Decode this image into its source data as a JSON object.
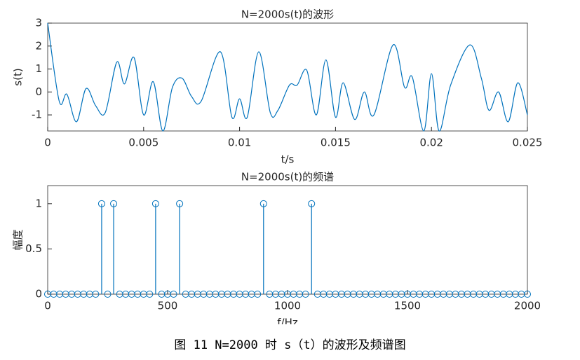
{
  "chart_data": [
    {
      "type": "line",
      "title": "N=2000s(t)的波形",
      "xlabel": "t/s",
      "ylabel": "s(t)",
      "color": "#0072bd",
      "x": [
        0,
        0.0006,
        0.001,
        0.0015,
        0.002,
        0.0025,
        0.003,
        0.0036,
        0.004,
        0.0045,
        0.005,
        0.0055,
        0.006,
        0.0065,
        0.007,
        0.0075,
        0.008,
        0.009,
        0.0096,
        0.01,
        0.0104,
        0.011,
        0.0116,
        0.012,
        0.0126,
        0.013,
        0.0135,
        0.014,
        0.0145,
        0.015,
        0.0154,
        0.016,
        0.0165,
        0.017,
        0.018,
        0.0186,
        0.019,
        0.0196,
        0.02,
        0.0204,
        0.021,
        0.022,
        0.0226,
        0.023,
        0.0235,
        0.024,
        0.0245,
        0.025
      ],
      "values": [
        3,
        -0.4,
        -0.1,
        -1.3,
        0.15,
        -0.6,
        -0.9,
        1.3,
        0.35,
        1.5,
        -1.0,
        0.45,
        -1.7,
        0.2,
        0.6,
        -0.2,
        -0.4,
        1.75,
        -1.1,
        -0.3,
        -1.1,
        1.75,
        -0.9,
        -0.8,
        0.3,
        0.3,
        0.95,
        -1.0,
        1.4,
        -1.1,
        0.4,
        -1.2,
        0.0,
        -1.0,
        2.05,
        0.2,
        0.65,
        -1.7,
        0.8,
        -1.7,
        0.3,
        2.05,
        0.6,
        -0.8,
        0.0,
        -1.3,
        0.4,
        -1.0
      ],
      "xlim": [
        0,
        0.025
      ],
      "ylim": [
        -1.7,
        3
      ],
      "xticks": [
        0,
        0.005,
        0.01,
        0.015,
        0.02,
        0.025
      ],
      "yticks": [
        -1,
        0,
        1,
        2,
        3
      ]
    },
    {
      "type": "stem",
      "title": "N=2000s(t)的频谱",
      "xlabel": "f/Hz",
      "ylabel": "幅度",
      "color": "#0072bd",
      "x": [
        0,
        25,
        50,
        75,
        100,
        125,
        150,
        175,
        200,
        225,
        250,
        275,
        300,
        325,
        350,
        375,
        400,
        425,
        450,
        475,
        500,
        525,
        550,
        575,
        600,
        625,
        650,
        675,
        700,
        725,
        750,
        775,
        800,
        825,
        850,
        875,
        900,
        925,
        950,
        975,
        1000,
        1025,
        1050,
        1075,
        1100,
        1125,
        1150,
        1175,
        1200,
        1225,
        1250,
        1275,
        1300,
        1325,
        1350,
        1375,
        1400,
        1425,
        1450,
        1475,
        1500,
        1525,
        1550,
        1575,
        1600,
        1625,
        1650,
        1675,
        1700,
        1725,
        1750,
        1775,
        1800,
        1825,
        1850,
        1875,
        1900,
        1925,
        1950,
        1975,
        2000
      ],
      "values": [
        0,
        0,
        0,
        0,
        0,
        0,
        0,
        0,
        0,
        1,
        0,
        1,
        0,
        0,
        0,
        0,
        0,
        0,
        1,
        0,
        0,
        0,
        1,
        0,
        0,
        0,
        0,
        0,
        0,
        0,
        0,
        0,
        0,
        0,
        0,
        0,
        1,
        0,
        0,
        0,
        0,
        0,
        0,
        0,
        1,
        0,
        0,
        0,
        0,
        0,
        0,
        0,
        0,
        0,
        0,
        0,
        0,
        0,
        0,
        0,
        0,
        0,
        0,
        0,
        0,
        0,
        0,
        0,
        0,
        0,
        0,
        0,
        0,
        0,
        0,
        0,
        0,
        0,
        0,
        0,
        0
      ],
      "xlim": [
        0,
        2000
      ],
      "ylim": [
        0,
        1.2
      ],
      "xticks": [
        0,
        500,
        1000,
        1500,
        2000
      ],
      "yticks": [
        0,
        0.5,
        1
      ]
    }
  ],
  "caption": "图 11 N=2000 时 s（t）的波形及频谱图"
}
